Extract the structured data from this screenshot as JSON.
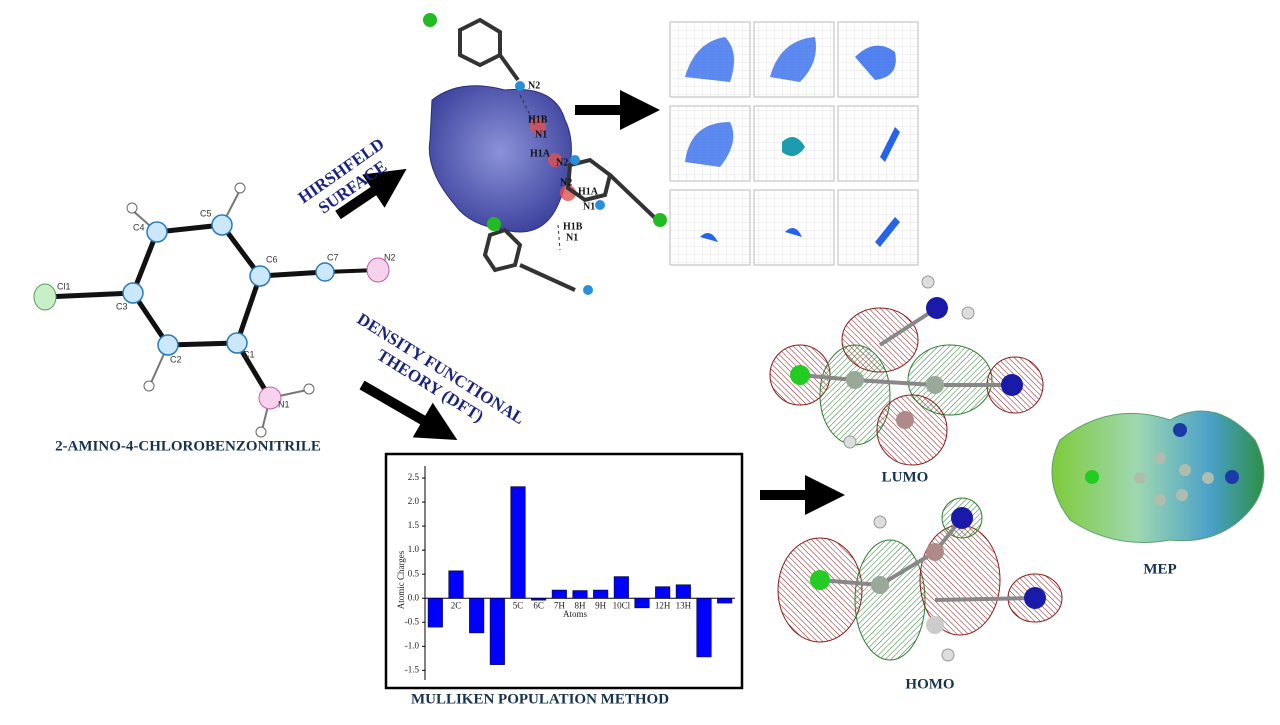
{
  "labels": {
    "compound": "2-AMINO-4-CHLOROBENZONITRILE",
    "hirshfeld": [
      "HIRSHFELD",
      "SURFACE"
    ],
    "dft": [
      "DENSITY FUNCTIONAL",
      "THEORY (DFT)"
    ],
    "lumo": "LUMO",
    "homo": "HOMO",
    "mep": "MEP"
  },
  "ortep_atoms": [
    "Cl1",
    "C3",
    "C4",
    "C5",
    "C6",
    "C7",
    "N2",
    "C1",
    "C2",
    "N1"
  ],
  "hirshfeld_atoms": [
    "N2",
    "H1B",
    "N1",
    "H1A",
    "N2",
    "N2",
    "H1A",
    "N1",
    "H1B",
    "N1"
  ],
  "chart_data": {
    "type": "bar",
    "title": "MULLIKEN POPULATION METHOD",
    "x_label": "Atoms",
    "y_label": "Atomic Charges",
    "categories": [
      null,
      "2C",
      null,
      null,
      "5C",
      "6C",
      "7H",
      "8H",
      "9H",
      "10Cl",
      null,
      "12H",
      "13H",
      null,
      null
    ],
    "values": [
      -0.6,
      0.57,
      -0.72,
      -1.38,
      2.32,
      -0.04,
      0.17,
      0.16,
      0.17,
      0.45,
      -0.2,
      0.24,
      0.28,
      -1.22,
      -0.1
    ],
    "color": "#0000ff",
    "ylim": [
      -1.7,
      2.75
    ],
    "yticks": [
      -1.5,
      {
        "value": -1,
        "label": "-1.0"
      },
      -0.5,
      {
        "value": 0,
        "label": "0.0"
      },
      0.5,
      {
        "value": 1,
        "label": "1.0"
      },
      1.5,
      {
        "value": 2,
        "label": "2.0"
      },
      2.5
    ]
  }
}
